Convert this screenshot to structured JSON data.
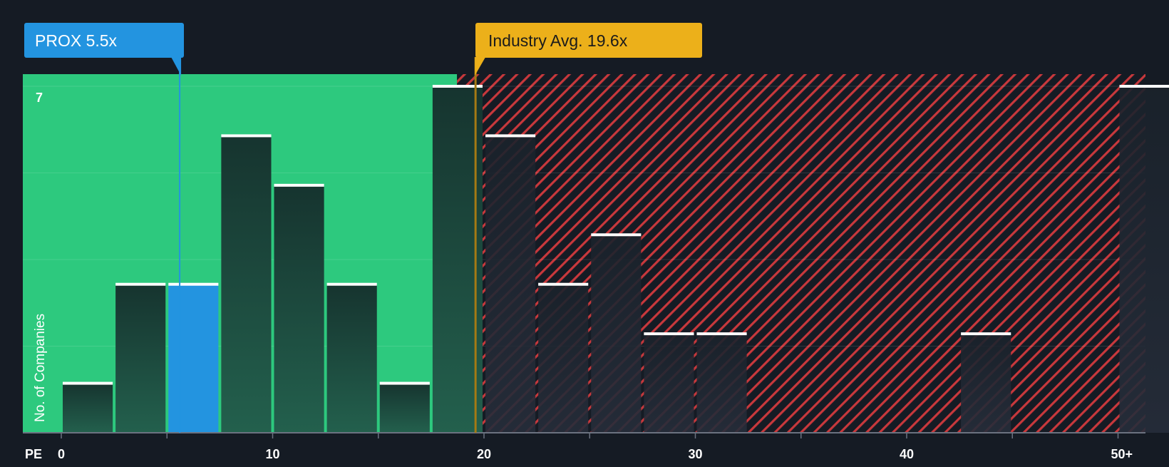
{
  "colors": {
    "background": "#151b24",
    "undervalued_zone": "#2dc97e",
    "overvalued_zone": "#c8383c",
    "bar": "#1f4a40",
    "bar_overvalued": "#1d2530",
    "highlight_bar": "#2394e0",
    "bar_cap": "#ffffff",
    "company_badge": "#2394e0",
    "industry_badge": "#ecb01a",
    "industry_line": "#a57a14"
  },
  "chart_data": {
    "type": "bar",
    "metric_label": "PE",
    "ylabel": "No. of Companies",
    "y_top_label": "7",
    "ylim": [
      0,
      7
    ],
    "x_ticks": [
      {
        "value": 0,
        "label": "0"
      },
      {
        "value": 10,
        "label": "10"
      },
      {
        "value": 20,
        "label": "20"
      },
      {
        "value": 30,
        "label": "30"
      },
      {
        "value": 40,
        "label": "40"
      },
      {
        "value": 50,
        "label": "50+"
      }
    ],
    "bins": [
      {
        "start": 0.0,
        "end": 2.5,
        "count": 1
      },
      {
        "start": 2.5,
        "end": 5.0,
        "count": 3
      },
      {
        "start": 5.0,
        "end": 7.5,
        "count": 3,
        "highlight": true
      },
      {
        "start": 7.5,
        "end": 10.0,
        "count": 6
      },
      {
        "start": 10.0,
        "end": 12.5,
        "count": 5
      },
      {
        "start": 12.5,
        "end": 15.0,
        "count": 3
      },
      {
        "start": 15.0,
        "end": 17.5,
        "count": 1
      },
      {
        "start": 17.5,
        "end": 20.0,
        "count": 7
      },
      {
        "start": 20.0,
        "end": 22.5,
        "count": 6
      },
      {
        "start": 22.5,
        "end": 25.0,
        "count": 3
      },
      {
        "start": 25.0,
        "end": 27.5,
        "count": 4
      },
      {
        "start": 27.5,
        "end": 30.0,
        "count": 2
      },
      {
        "start": 30.0,
        "end": 32.5,
        "count": 2
      },
      {
        "start": 42.5,
        "end": 45.0,
        "count": 2
      },
      {
        "start": 50.0,
        "end": 52.5,
        "count": 7
      }
    ],
    "company": {
      "ticker": "PROX",
      "value": 5.5,
      "label": "PROX 5.5x"
    },
    "industry": {
      "value": 19.6,
      "label": "Industry Avg. 19.6x"
    }
  }
}
